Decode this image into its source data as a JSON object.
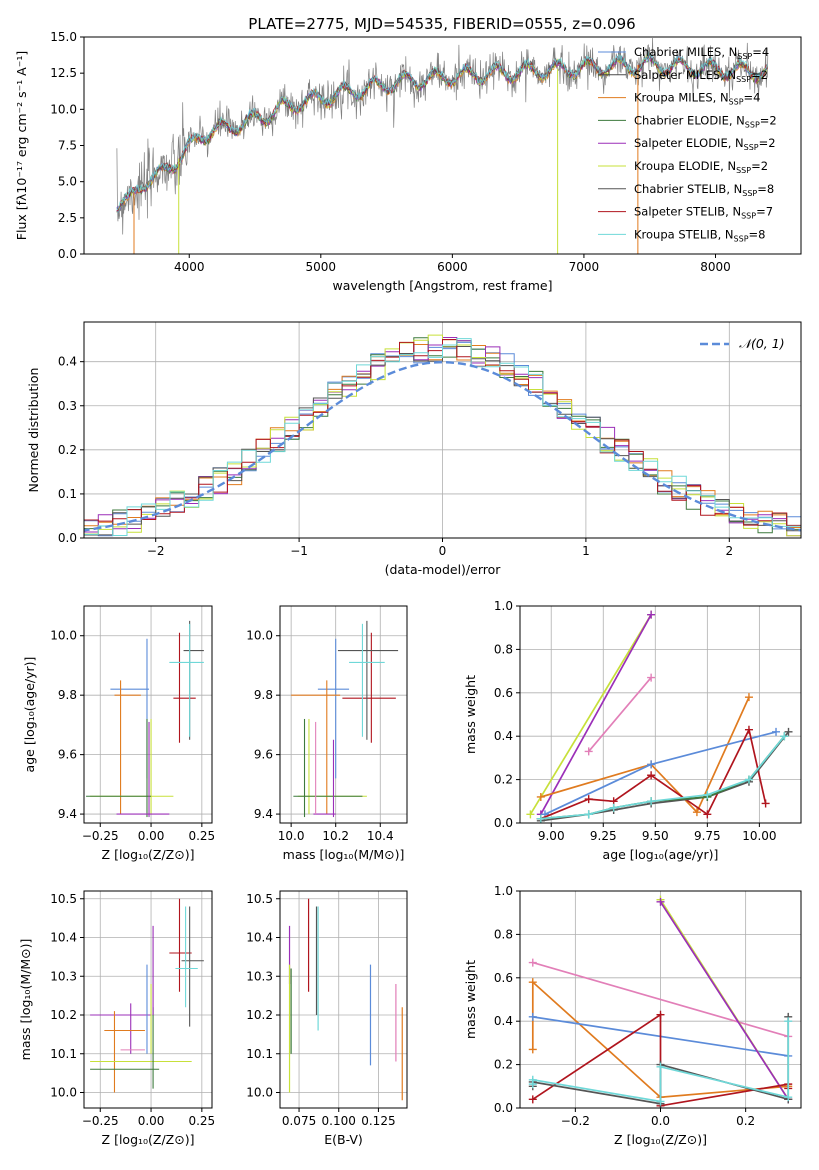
{
  "figure": {
    "title": "PLATE=2775, MJD=54535, FIBERID=0555, z=0.096",
    "colors": {
      "Chabrier MILES": "#5b8bd9",
      "Salpeter MILES": "#4a4a4a",
      "Kroupa MILES": "#e07b1f",
      "Chabrier ELODIE": "#3d7a3d",
      "Salpeter ELODIE": "#9b2fb8",
      "Kroupa ELODIE": "#c7e03a",
      "Chabrier STELIB": "#555555",
      "Salpeter STELIB": "#b0151e",
      "Kroupa STELIB": "#6fd8d8",
      "pink": "#e27fb8",
      "data": "#808080",
      "normal": "#5b8bd9"
    }
  },
  "chart_data": [
    {
      "id": "spectrum",
      "type": "line",
      "title": "PLATE=2775, MJD=54535, FIBERID=0555, z=0.096",
      "xlabel": "wavelength [Angstrom, rest frame]",
      "ylabel": "Flux [fλ10⁻¹⁷ erg cm⁻² s⁻¹ A⁻¹]",
      "xlim": [
        3200,
        8650
      ],
      "ylim": [
        0,
        15
      ],
      "xticks": [
        4000,
        5000,
        6000,
        7000,
        8000
      ],
      "yticks": [
        0.0,
        2.5,
        5.0,
        7.5,
        10.0,
        12.5,
        15.0
      ],
      "x_range_data": [
        3450,
        8400
      ],
      "continuum": [
        [
          3450,
          3.2
        ],
        [
          3650,
          4.8
        ],
        [
          3900,
          6.4
        ],
        [
          4100,
          8.3
        ],
        [
          4400,
          9.0
        ],
        [
          4800,
          10.4
        ],
        [
          5200,
          11.2
        ],
        [
          5600,
          11.9
        ],
        [
          6000,
          12.3
        ],
        [
          6500,
          12.6
        ],
        [
          7000,
          12.9
        ],
        [
          7500,
          13.1
        ],
        [
          8000,
          12.8
        ],
        [
          8400,
          12.6
        ]
      ],
      "legend": [
        {
          "name": "Chabrier MILES",
          "nssp": "4"
        },
        {
          "name": "Salpeter MILES",
          "nssp": "2"
        },
        {
          "name": "Kroupa MILES",
          "nssp": "4"
        },
        {
          "name": "Chabrier ELODIE",
          "nssp": "2"
        },
        {
          "name": "Salpeter ELODIE",
          "nssp": "2"
        },
        {
          "name": "Kroupa ELODIE",
          "nssp": "2"
        },
        {
          "name": "Chabrier STELIB",
          "nssp": "8"
        },
        {
          "name": "Salpeter STELIB",
          "nssp": "7"
        },
        {
          "name": "Kroupa STELIB",
          "nssp": "8"
        }
      ],
      "legend_placement": "right"
    },
    {
      "id": "residuals",
      "type": "line",
      "xlabel": "(data-model)/error",
      "ylabel": "Normed distribution",
      "xlim": [
        -2.5,
        2.5
      ],
      "ylim": [
        0,
        0.49
      ],
      "xticks": [
        -2,
        -1,
        0,
        1,
        2
      ],
      "yticks": [
        0.0,
        0.1,
        0.2,
        0.3,
        0.4
      ],
      "grid": true,
      "bin_width": 0.1,
      "legend": [
        {
          "name": "𝒩(0, 1)"
        }
      ],
      "legend_placement": "top-right"
    },
    {
      "id": "age_vs_Z",
      "type": "scatter",
      "xlabel": "Z [log₁₀(Z/Z⊙)]",
      "ylabel": "age  [log₁₀(age/yr)]",
      "xlim": [
        -0.33,
        0.3
      ],
      "ylim": [
        9.37,
        10.1
      ],
      "xticks": [
        -0.25,
        0.0,
        0.25
      ],
      "yticks": [
        9.4,
        9.6,
        9.8,
        10.0
      ],
      "grid": true,
      "points": [
        {
          "model": "Chabrier MILES",
          "x": -0.02,
          "y": 9.82,
          "xerr": [
            0.18,
            0.01
          ],
          "yerr": [
            0.3,
            0.17
          ]
        },
        {
          "model": "Kroupa MILES",
          "x": -0.15,
          "y": 9.8,
          "xerr": [
            0.03,
            0.1
          ],
          "yerr": [
            0.4,
            0.05
          ]
        },
        {
          "model": "Kroupa ELODIE",
          "x": 0.0,
          "y": 9.46,
          "xerr": [
            0.3,
            0.11
          ],
          "yerr": [
            0.06,
            0.26
          ]
        },
        {
          "model": "Chabrier ELODIE",
          "x": -0.02,
          "y": 9.46,
          "xerr": [
            0.3,
            0.02
          ],
          "yerr": [
            0.07,
            0.26
          ]
        },
        {
          "model": "Salpeter ELODIE",
          "x": -0.01,
          "y": 9.4,
          "xerr": [
            0.16,
            0.1
          ],
          "yerr": [
            0.01,
            0.31
          ]
        },
        {
          "model": "Salpeter STELIB",
          "x": 0.14,
          "y": 9.79,
          "xerr": [
            0.03,
            0.08
          ],
          "yerr": [
            0.15,
            0.22
          ]
        },
        {
          "model": "Chabrier STELIB",
          "x": 0.19,
          "y": 9.95,
          "xerr": [
            0.03,
            0.07
          ],
          "yerr": [
            0.3,
            0.1
          ]
        },
        {
          "model": "Kroupa STELIB",
          "x": 0.19,
          "y": 9.91,
          "xerr": [
            0.1,
            0.07
          ],
          "yerr": [
            0.25,
            0.13
          ]
        }
      ]
    },
    {
      "id": "age_vs_mass",
      "type": "scatter",
      "xlabel": "mass [log₁₀(M/M⊙)]",
      "ylabel": "",
      "xlim": [
        9.95,
        10.52
      ],
      "ylim": [
        9.37,
        10.1
      ],
      "xticks": [
        10.0,
        10.2,
        10.4
      ],
      "yticks": [
        9.4,
        9.6,
        9.8,
        10.0
      ],
      "grid": true,
      "points": [
        {
          "model": "Chabrier MILES",
          "x": 10.2,
          "y": 9.82,
          "xerr": [
            0.08,
            0.06
          ],
          "yerr": [
            0.3,
            0.17
          ]
        },
        {
          "model": "Kroupa MILES",
          "x": 10.16,
          "y": 9.8,
          "xerr": [
            0.16,
            0.06
          ],
          "yerr": [
            0.4,
            0.05
          ]
        },
        {
          "model": "Kroupa ELODIE",
          "x": 10.08,
          "y": 9.46,
          "xerr": [
            0.05,
            0.26
          ],
          "yerr": [
            0.06,
            0.26
          ]
        },
        {
          "model": "Chabrier ELODIE",
          "x": 10.06,
          "y": 9.46,
          "xerr": [
            0.05,
            0.26
          ],
          "yerr": [
            0.07,
            0.26
          ]
        },
        {
          "model": "Salpeter ELODIE",
          "x": 10.19,
          "y": 9.4,
          "xerr": [
            0.09,
            0.01
          ],
          "yerr": [
            0.01,
            0.25
          ]
        },
        {
          "model": "pink",
          "x": 10.11,
          "y": 9.4,
          "xerr": [
            0.0,
            0.0
          ],
          "yerr": [
            0.0,
            0.31
          ]
        },
        {
          "model": "Salpeter STELIB",
          "x": 10.36,
          "y": 9.79,
          "xerr": [
            0.13,
            0.11
          ],
          "yerr": [
            0.15,
            0.22
          ]
        },
        {
          "model": "Chabrier STELIB",
          "x": 10.34,
          "y": 9.95,
          "xerr": [
            0.13,
            0.14
          ],
          "yerr": [
            0.3,
            0.1
          ]
        },
        {
          "model": "Kroupa STELIB",
          "x": 10.32,
          "y": 9.91,
          "xerr": [
            0.06,
            0.1
          ],
          "yerr": [
            0.25,
            0.13
          ]
        }
      ]
    },
    {
      "id": "weight_vs_age",
      "type": "line",
      "xlabel": "age  [log₁₀(age/yr)]",
      "ylabel": "mass weight",
      "xlim": [
        8.85,
        10.2
      ],
      "ylim": [
        0,
        1
      ],
      "xticks": [
        9.0,
        9.25,
        9.5,
        9.75,
        10.0
      ],
      "yticks": [
        0.0,
        0.2,
        0.4,
        0.6,
        0.8,
        1.0
      ],
      "grid": true,
      "series": [
        {
          "model": "Kroupa ELODIE",
          "x": [
            8.9,
            9.48
          ],
          "y": [
            0.04,
            0.96
          ]
        },
        {
          "model": "Salpeter ELODIE",
          "x": [
            8.95,
            9.48
          ],
          "y": [
            0.04,
            0.96
          ]
        },
        {
          "model": "pink",
          "x": [
            9.18,
            9.48
          ],
          "y": [
            0.33,
            0.67
          ]
        },
        {
          "model": "Kroupa MILES",
          "x": [
            8.95,
            9.48,
            9.7,
            9.95
          ],
          "y": [
            0.12,
            0.27,
            0.05,
            0.58
          ]
        },
        {
          "model": "Chabrier MILES",
          "x": [
            8.97,
            9.48,
            10.08
          ],
          "y": [
            0.04,
            0.27,
            0.42
          ]
        },
        {
          "model": "Salpeter STELIB",
          "x": [
            8.95,
            9.18,
            9.3,
            9.48,
            9.75,
            9.95,
            10.03
          ],
          "y": [
            0.02,
            0.11,
            0.1,
            0.22,
            0.04,
            0.43,
            0.09
          ]
        },
        {
          "model": "Chabrier STELIB",
          "x": [
            8.95,
            9.18,
            9.3,
            9.48,
            9.75,
            9.95,
            10.14
          ],
          "y": [
            0.01,
            0.04,
            0.06,
            0.09,
            0.12,
            0.19,
            0.42
          ]
        },
        {
          "model": "Chabrier ELODIE",
          "x": [
            8.95,
            9.18,
            9.3,
            9.48,
            9.75,
            9.95,
            10.12
          ],
          "y": [
            0.02,
            0.04,
            0.07,
            0.1,
            0.12,
            0.2,
            0.4
          ]
        },
        {
          "model": "Kroupa STELIB",
          "x": [
            8.95,
            9.18,
            9.3,
            9.48,
            9.75,
            9.95,
            10.12
          ],
          "y": [
            0.02,
            0.04,
            0.07,
            0.1,
            0.13,
            0.2,
            0.4
          ]
        }
      ]
    },
    {
      "id": "mass_vs_Z",
      "type": "scatter",
      "xlabel": "Z [log₁₀(Z/Z⊙)]",
      "ylabel": "mass [log₁₀(M/M⊙)]",
      "xlim": [
        -0.33,
        0.3
      ],
      "ylim": [
        9.96,
        10.52
      ],
      "xticks": [
        -0.25,
        0.0,
        0.25
      ],
      "yticks": [
        10.0,
        10.1,
        10.2,
        10.3,
        10.4,
        10.5
      ],
      "grid": true,
      "points": [
        {
          "model": "Salpeter ELODIE",
          "x": -0.1,
          "y": 10.2,
          "xerr": [
            0.2,
            0.1
          ],
          "yerr": [
            0.1,
            0.03
          ]
        },
        {
          "model": "Kroupa MILES",
          "x": -0.18,
          "y": 10.16,
          "xerr": [
            0.05,
            0.15
          ],
          "yerr": [
            0.16,
            0.05
          ]
        },
        {
          "model": "Chabrier MILES",
          "x": -0.02,
          "y": 10.2,
          "xerr": [
            0.0,
            0.0
          ],
          "yerr": [
            0.1,
            0.13
          ]
        },
        {
          "model": "pink",
          "x": -0.15,
          "y": 10.11,
          "xerr": [
            0.0,
            0.12
          ],
          "yerr": [
            0.0,
            0.0
          ]
        },
        {
          "model": "Kroupa ELODIE",
          "x": -0.06,
          "y": 10.08,
          "xerr": [
            0.24,
            0.26
          ],
          "yerr": [
            0.0,
            0.0
          ]
        },
        {
          "model": "Chabrier ELODIE",
          "x": -0.1,
          "y": 10.06,
          "xerr": [
            0.2,
            0.14
          ],
          "yerr": [
            0.0,
            0.0
          ]
        },
        {
          "model": "Kroupa ELODIE",
          "x": 0.0,
          "y": 10.2,
          "xerr": [
            0.0,
            0.0
          ],
          "yerr": [
            0.1,
            0.08
          ]
        },
        {
          "model": "Chabrier ELODIE",
          "x": 0.01,
          "y": 10.2,
          "xerr": [
            0.0,
            0.0
          ],
          "yerr": [
            0.19,
            0.02
          ]
        },
        {
          "model": "Salpeter ELODIE",
          "x": 0.01,
          "y": 10.37,
          "xerr": [
            0.0,
            0.0
          ],
          "yerr": [
            0.17,
            0.06
          ]
        },
        {
          "model": "Salpeter STELIB",
          "x": 0.14,
          "y": 10.36,
          "xerr": [
            0.05,
            0.06
          ],
          "yerr": [
            0.1,
            0.14
          ]
        },
        {
          "model": "Chabrier STELIB",
          "x": 0.19,
          "y": 10.34,
          "xerr": [
            0.04,
            0.07
          ],
          "yerr": [
            0.17,
            0.14
          ]
        },
        {
          "model": "Kroupa STELIB",
          "x": 0.17,
          "y": 10.32,
          "xerr": [
            0.05,
            0.06
          ],
          "yerr": [
            0.1,
            0.16
          ]
        }
      ]
    },
    {
      "id": "mass_vs_EBV",
      "type": "scatter",
      "xlabel": "E(B-V)",
      "ylabel": "",
      "xlim": [
        0.063,
        0.143
      ],
      "ylim": [
        9.96,
        10.52
      ],
      "xticks": [
        0.075,
        0.1,
        0.125
      ],
      "yticks": [
        10.0,
        10.1,
        10.2,
        10.3,
        10.4,
        10.5
      ],
      "grid": true,
      "vlines": [
        {
          "model": "Salpeter ELODIE",
          "x": 0.069,
          "y": [
            10.28,
            10.43
          ]
        },
        {
          "model": "Kroupa ELODIE",
          "x": 0.069,
          "y": [
            10.0,
            10.33
          ]
        },
        {
          "model": "Chabrier ELODIE",
          "x": 0.07,
          "y": [
            10.1,
            10.32
          ]
        },
        {
          "model": "Salpeter STELIB",
          "x": 0.081,
          "y": [
            10.26,
            10.5
          ]
        },
        {
          "model": "Kroupa STELIB",
          "x": 0.087,
          "y": [
            10.16,
            10.48
          ]
        },
        {
          "model": "Chabrier STELIB",
          "x": 0.086,
          "y": [
            10.2,
            10.48
          ]
        },
        {
          "model": "Chabrier MILES",
          "x": 0.12,
          "y": [
            10.07,
            10.33
          ]
        },
        {
          "model": "pink",
          "x": 0.136,
          "y": [
            10.08,
            10.28
          ]
        },
        {
          "model": "Kroupa MILES",
          "x": 0.14,
          "y": [
            9.98,
            10.22
          ]
        }
      ]
    },
    {
      "id": "weight_vs_Z",
      "type": "line",
      "xlabel": "Z [log₁₀(Z/Z⊙)]",
      "ylabel": "mass weight",
      "xlim": [
        -0.33,
        0.33
      ],
      "ylim": [
        0,
        1
      ],
      "xticks": [
        -0.2,
        0.0,
        0.2
      ],
      "yticks": [
        0.0,
        0.2,
        0.4,
        0.6,
        0.8,
        1.0
      ],
      "grid": true,
      "series": [
        {
          "model": "pink",
          "x": [
            -0.3,
            0.3
          ],
          "y": [
            0.67,
            0.33
          ]
        },
        {
          "model": "Kroupa MILES",
          "x": [
            -0.3,
            -0.3,
            0.0,
            0.3
          ],
          "y": [
            0.27,
            0.58,
            0.05,
            0.1
          ]
        },
        {
          "model": "Chabrier MILES",
          "x": [
            -0.3,
            0.3
          ],
          "y": [
            0.42,
            0.24
          ]
        },
        {
          "model": "Kroupa ELODIE",
          "x": [
            0.0,
            0.3
          ],
          "y": [
            0.96,
            0.04
          ]
        },
        {
          "model": "Salpeter ELODIE",
          "x": [
            0.0,
            0.3
          ],
          "y": [
            0.95,
            0.04
          ]
        },
        {
          "model": "Salpeter STELIB",
          "x": [
            -0.3,
            0.0,
            0.0,
            0.3,
            0.3
          ],
          "y": [
            0.04,
            0.43,
            0.01,
            0.11,
            0.09
          ]
        },
        {
          "model": "Chabrier STELIB",
          "x": [
            -0.3,
            -0.3,
            0.0,
            0.0,
            0.3,
            0.3
          ],
          "y": [
            0.1,
            0.12,
            0.02,
            0.2,
            0.04,
            0.42
          ]
        },
        {
          "model": "Kroupa STELIB",
          "x": [
            -0.3,
            -0.3,
            0.0,
            0.0,
            0.3,
            0.3
          ],
          "y": [
            0.11,
            0.13,
            0.03,
            0.19,
            0.05,
            0.4
          ]
        }
      ]
    }
  ]
}
